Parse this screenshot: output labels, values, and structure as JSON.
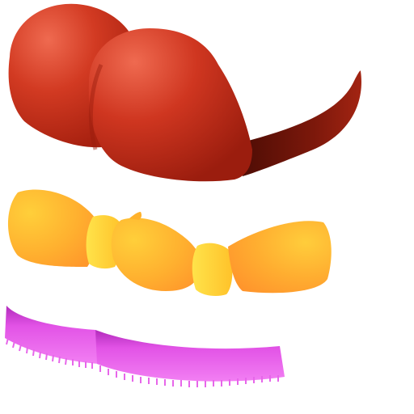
{
  "title": "",
  "assets": [
    {
      "name": "red-hat",
      "colors": {
        "light": "#e85a44",
        "mid": "#c9321b",
        "dark": "#8e1a10",
        "brim": "#5e1208"
      }
    },
    {
      "name": "orange-bow",
      "colors": {
        "light": "#ffd23a",
        "mid": "#ffb22c",
        "dark": "#ff9a2e",
        "knot": "#ffd93a"
      }
    },
    {
      "name": "magenta-fringe",
      "colors": {
        "light": "#f07cf2",
        "mid": "#d94ce0",
        "dark": "#b52fc0"
      }
    }
  ]
}
